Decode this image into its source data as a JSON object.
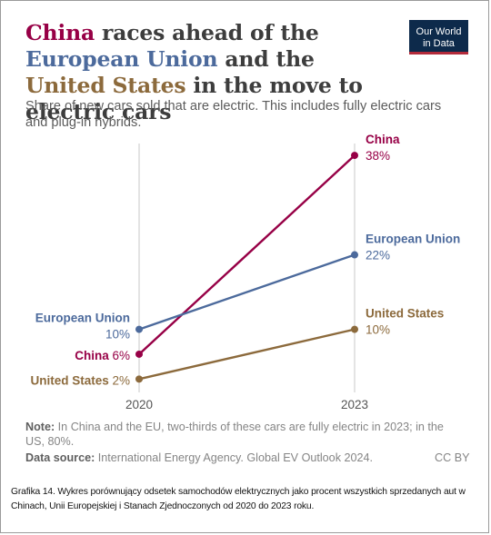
{
  "title": {
    "part1": "China",
    "part2": " races ahead of the ",
    "part3": "European Union",
    "part4": " and the ",
    "part5": "United States",
    "part6": " in the move to electric cars"
  },
  "subtitle": "Share of new cars sold that are electric. This includes fully electric cars and plug-in hybrids.",
  "logo": {
    "line1": "Our World",
    "line2": "in Data"
  },
  "note": {
    "label": "Note:",
    "text": " In China and the EU, two-thirds of these cars are fully electric in 2023; in the US, 80%."
  },
  "source": {
    "label": "Data source:",
    "text": " International Energy Agency. Global EV Outlook 2024."
  },
  "license": "CC BY",
  "caption": "Grafika 14. Wykres porównujący odsetek samochodów elektrycznych jako procent wszystkich sprzedanych aut w Chinach, Unii Europejskiej i Stanach Zjednoczonych od 2020 do 2023 roku.",
  "colors": {
    "china": "#970046",
    "eu": "#4c6a9c",
    "us": "#8c6a3c",
    "grid": "#c8c8c8"
  },
  "chart_data": {
    "type": "line",
    "x": [
      "2020",
      "2023"
    ],
    "ylim": [
      0,
      40
    ],
    "series": [
      {
        "name": "China",
        "values": [
          6,
          38
        ],
        "labels": [
          "6%",
          "38%"
        ],
        "color": "#970046"
      },
      {
        "name": "European Union",
        "values": [
          10,
          22
        ],
        "labels": [
          "10%",
          "22%"
        ],
        "color": "#4c6a9c"
      },
      {
        "name": "United States",
        "values": [
          2,
          10
        ],
        "labels": [
          "2%",
          "10%"
        ],
        "color": "#8c6a3c"
      }
    ]
  }
}
